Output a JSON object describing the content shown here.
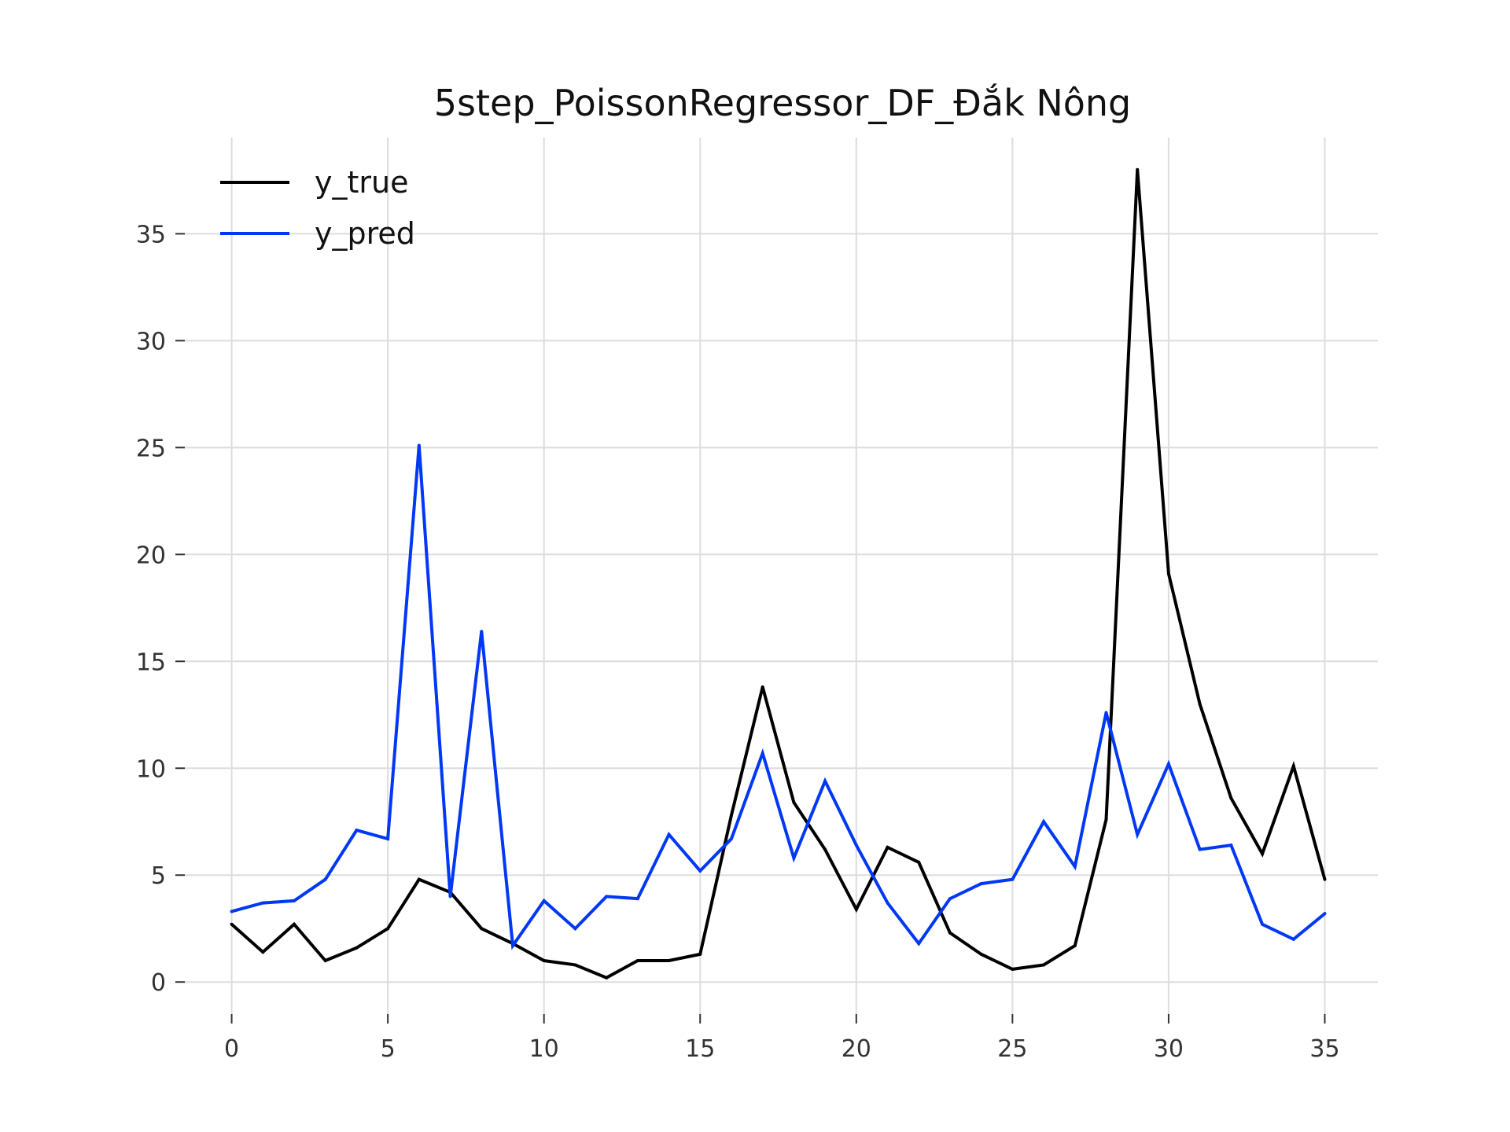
{
  "chart_data": {
    "type": "line",
    "title": "5step_PoissonRegressor_DF_Đắk Nông",
    "xlabel": "",
    "ylabel": "",
    "x": [
      0,
      1,
      2,
      3,
      4,
      5,
      6,
      7,
      8,
      9,
      10,
      11,
      12,
      13,
      14,
      15,
      16,
      17,
      18,
      19,
      20,
      21,
      22,
      23,
      24,
      25,
      26,
      27,
      28,
      29,
      30,
      31,
      32,
      33,
      34,
      35
    ],
    "xlim": [
      -1.5,
      36.7
    ],
    "ylim": [
      -1.5,
      39.5
    ],
    "xticks": [
      0,
      5,
      10,
      15,
      20,
      25,
      30,
      35
    ],
    "yticks": [
      0,
      5,
      10,
      15,
      20,
      25,
      30,
      35
    ],
    "xtick_labels": [
      "0",
      "5",
      "10",
      "15",
      "20",
      "25",
      "30",
      "35"
    ],
    "ytick_labels": [
      "0",
      "5",
      "10",
      "15",
      "20",
      "25",
      "30",
      "35"
    ],
    "grid": true,
    "legend_position": "top-left",
    "series": [
      {
        "name": "y_true",
        "color": "#000000",
        "values": [
          2.7,
          1.4,
          2.7,
          1.0,
          1.6,
          2.5,
          4.8,
          4.2,
          2.5,
          1.8,
          1.0,
          0.8,
          0.2,
          1.0,
          1.0,
          1.3,
          7.8,
          13.8,
          8.4,
          6.2,
          3.4,
          6.3,
          5.6,
          2.3,
          1.3,
          0.6,
          0.8,
          1.7,
          7.6,
          38.0,
          19.1,
          13.0,
          8.6,
          6.0,
          10.1,
          4.8
        ]
      },
      {
        "name": "y_pred",
        "color": "#0038f5",
        "values": [
          3.3,
          3.7,
          3.8,
          4.8,
          7.1,
          6.7,
          25.1,
          4.0,
          16.4,
          1.7,
          3.8,
          2.5,
          4.0,
          3.9,
          6.9,
          5.2,
          6.7,
          10.7,
          5.8,
          9.4,
          6.4,
          3.7,
          1.8,
          3.9,
          4.6,
          4.8,
          7.5,
          5.4,
          12.6,
          6.9,
          10.2,
          6.2,
          6.4,
          2.7,
          2.0,
          3.2
        ]
      }
    ]
  }
}
